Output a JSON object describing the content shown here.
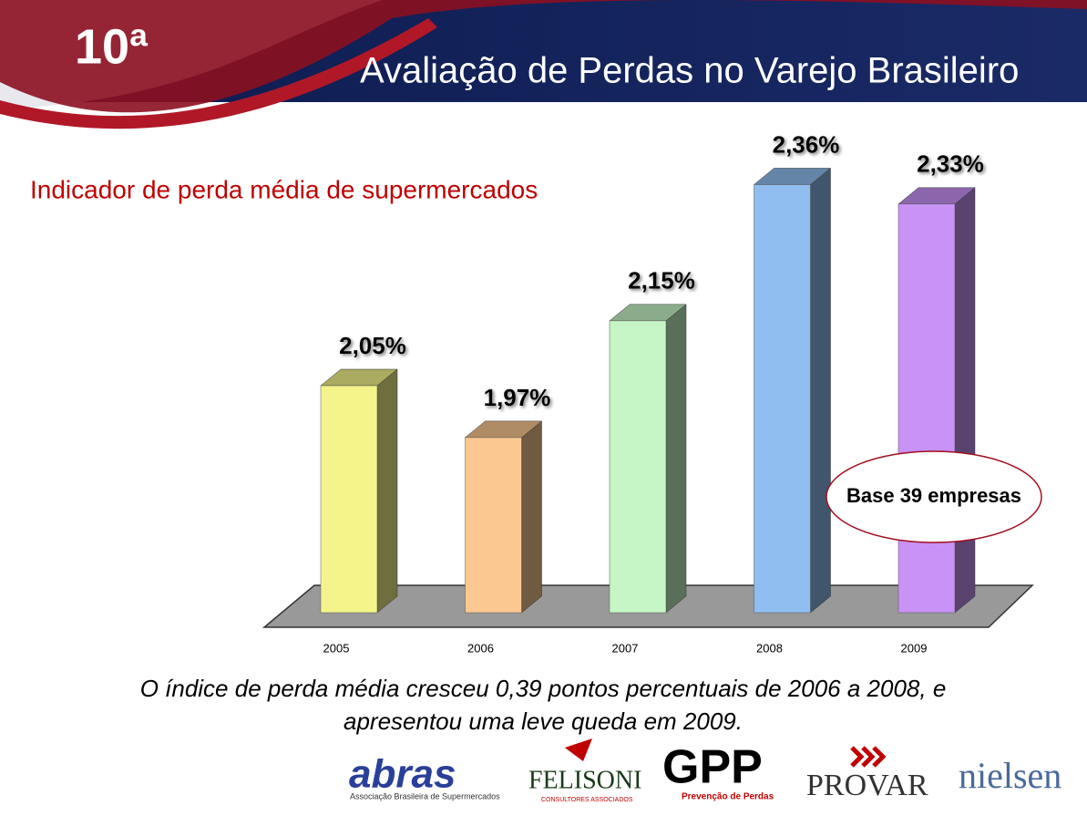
{
  "header": {
    "edition": "10ª",
    "title": "Avaliação de Perdas no Varejo Brasileiro"
  },
  "chart_data": {
    "type": "bar3d",
    "title": "Indicador de perda média de supermercados",
    "categories": [
      "2005",
      "2006",
      "2007",
      "2008",
      "2009"
    ],
    "values": [
      2.05,
      1.97,
      2.15,
      2.36,
      2.33
    ],
    "value_labels": [
      "2,05%",
      "1,97%",
      "2,15%",
      "2,36%",
      "2,33%"
    ],
    "colors": [
      "#f4f48a",
      "#fcc892",
      "#c6f6c6",
      "#90bef0",
      "#c892f6"
    ],
    "ylim": [
      1.7,
      2.4
    ],
    "annotation": "Base 39 empresas"
  },
  "footer": {
    "caption": [
      "O índice de perda média cresceu 0,39 pontos percentuais de 2006 a 2008, e",
      "apresentou uma leve queda em 2009."
    ],
    "logos": [
      {
        "name": "abras",
        "sub": "Associação Brasileira de Supermercados"
      },
      {
        "name": "FELISONI",
        "sub": "CONSULTORES ASSOCIADOS"
      },
      {
        "name": "GPP",
        "sub": "Prevenção de Perdas"
      },
      {
        "name": "PROVAR"
      },
      {
        "name": "nielsen"
      }
    ]
  }
}
